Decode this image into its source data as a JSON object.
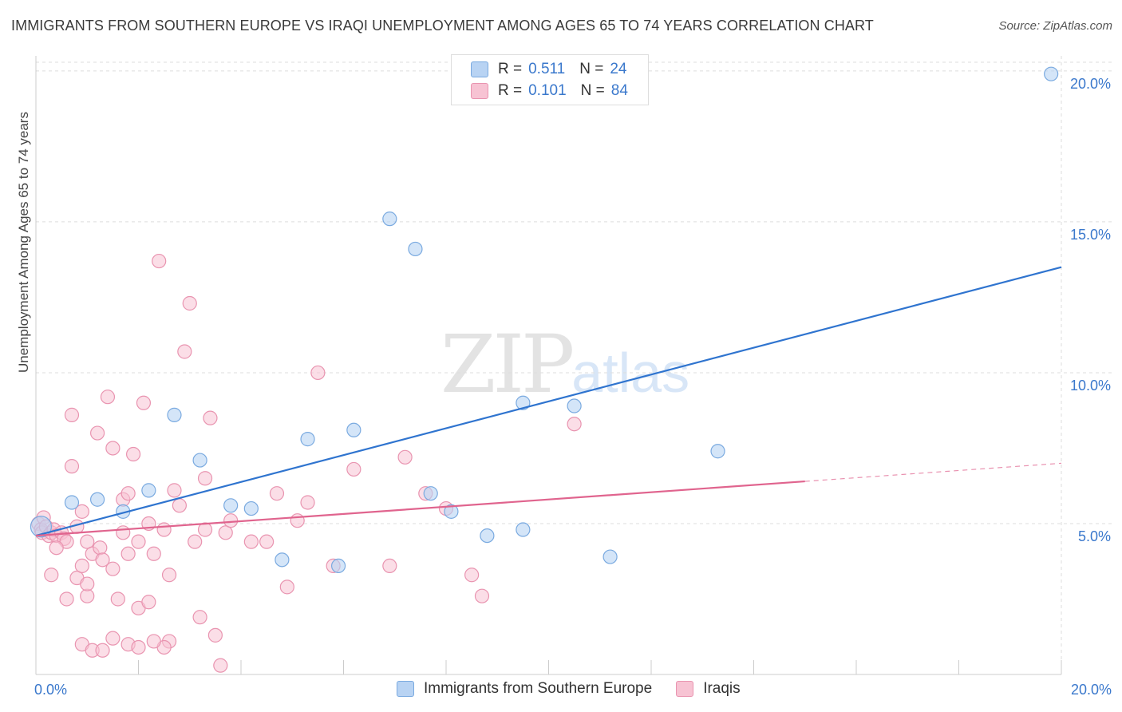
{
  "title": "IMMIGRANTS FROM SOUTHERN EUROPE VS IRAQI UNEMPLOYMENT AMONG AGES 65 TO 74 YEARS CORRELATION CHART",
  "source": "Source: ZipAtlas.com",
  "watermark": {
    "zip": "ZIP",
    "atlas": "atlas"
  },
  "legend": {
    "rows": [
      {
        "r_label": "R =",
        "r_value": "0.511",
        "n_label": "N =",
        "n_value": "24"
      },
      {
        "r_label": "R =",
        "r_value": "0.101",
        "n_label": "N =",
        "n_value": "84"
      }
    ]
  },
  "colors": {
    "blue_fill": "#b8d3f3",
    "blue_stroke": "#7aaae0",
    "blue_line": "#2f74cf",
    "pink_fill": "#f7c3d3",
    "pink_stroke": "#e994b0",
    "pink_line": "#e0648e",
    "tick_label": "#3a78cc",
    "grid": "#dedede"
  },
  "chart_data": {
    "type": "scatter",
    "title": "IMMIGRANTS FROM SOUTHERN EUROPE VS IRAQI UNEMPLOYMENT AMONG AGES 65 TO 74 YEARS CORRELATION CHART",
    "xlabel": "",
    "ylabel": "Unemployment Among Ages 65 to 74 years",
    "xlim": [
      0,
      20
    ],
    "ylim": [
      0,
      20.5
    ],
    "x_tick_labels": [
      "0.0%",
      "20.0%"
    ],
    "y_ticks": [
      5,
      10,
      15,
      20
    ],
    "y_tick_labels": [
      "5.0%",
      "10.0%",
      "15.0%",
      "20.0%"
    ],
    "series": [
      {
        "name": "Immigrants from Southern Europe",
        "color": "blue",
        "points": [
          [
            0.1,
            4.9
          ],
          [
            0.7,
            5.7
          ],
          [
            1.2,
            5.8
          ],
          [
            1.7,
            5.4
          ],
          [
            2.2,
            6.1
          ],
          [
            2.7,
            8.6
          ],
          [
            3.2,
            7.1
          ],
          [
            3.8,
            5.6
          ],
          [
            4.2,
            5.5
          ],
          [
            4.8,
            3.8
          ],
          [
            5.3,
            7.8
          ],
          [
            5.9,
            3.6
          ],
          [
            6.2,
            8.1
          ],
          [
            6.9,
            15.1
          ],
          [
            7.4,
            14.1
          ],
          [
            7.7,
            6.0
          ],
          [
            8.1,
            5.4
          ],
          [
            8.8,
            4.6
          ],
          [
            9.5,
            9.0
          ],
          [
            9.5,
            4.8
          ],
          [
            10.5,
            8.9
          ],
          [
            11.2,
            3.9
          ],
          [
            13.3,
            7.4
          ],
          [
            19.8,
            19.9
          ]
        ],
        "trend": {
          "x0": 0,
          "y0": 4.6,
          "x1": 20,
          "y1": 13.5
        }
      },
      {
        "name": "Iraqis",
        "color": "pink",
        "points": [
          [
            0.05,
            5.0
          ],
          [
            0.1,
            4.8
          ],
          [
            0.12,
            4.7
          ],
          [
            0.15,
            5.2
          ],
          [
            0.2,
            4.9
          ],
          [
            0.25,
            4.6
          ],
          [
            0.3,
            4.7
          ],
          [
            0.35,
            4.8
          ],
          [
            0.4,
            4.6
          ],
          [
            0.5,
            4.7
          ],
          [
            0.55,
            4.5
          ],
          [
            0.6,
            4.4
          ],
          [
            0.7,
            8.6
          ],
          [
            0.7,
            6.9
          ],
          [
            0.8,
            3.2
          ],
          [
            0.9,
            3.6
          ],
          [
            0.9,
            5.4
          ],
          [
            1.0,
            4.4
          ],
          [
            1.0,
            2.6
          ],
          [
            1.1,
            4.0
          ],
          [
            1.2,
            8.0
          ],
          [
            1.25,
            4.2
          ],
          [
            1.3,
            3.8
          ],
          [
            1.4,
            9.2
          ],
          [
            1.5,
            7.5
          ],
          [
            1.5,
            3.5
          ],
          [
            1.6,
            2.5
          ],
          [
            1.7,
            5.8
          ],
          [
            1.8,
            6.0
          ],
          [
            1.8,
            4.0
          ],
          [
            1.9,
            7.3
          ],
          [
            2.0,
            4.4
          ],
          [
            2.0,
            2.2
          ],
          [
            2.1,
            9.0
          ],
          [
            2.2,
            5.0
          ],
          [
            2.3,
            4.0
          ],
          [
            2.4,
            13.7
          ],
          [
            2.5,
            4.8
          ],
          [
            2.6,
            3.3
          ],
          [
            2.6,
            1.1
          ],
          [
            2.7,
            6.1
          ],
          [
            2.8,
            5.6
          ],
          [
            2.9,
            10.7
          ],
          [
            3.0,
            12.3
          ],
          [
            3.1,
            4.4
          ],
          [
            3.2,
            1.9
          ],
          [
            3.3,
            6.5
          ],
          [
            3.3,
            4.8
          ],
          [
            3.4,
            8.5
          ],
          [
            3.5,
            1.3
          ],
          [
            3.6,
            0.3
          ],
          [
            3.7,
            4.7
          ],
          [
            3.8,
            5.1
          ],
          [
            4.2,
            4.4
          ],
          [
            4.5,
            4.4
          ],
          [
            4.7,
            6.0
          ],
          [
            4.9,
            2.9
          ],
          [
            5.1,
            5.1
          ],
          [
            5.3,
            5.7
          ],
          [
            5.5,
            10.0
          ],
          [
            5.8,
            3.6
          ],
          [
            6.2,
            6.8
          ],
          [
            6.9,
            3.6
          ],
          [
            7.2,
            7.2
          ],
          [
            7.6,
            6.0
          ],
          [
            8.0,
            5.5
          ],
          [
            8.5,
            3.3
          ],
          [
            8.7,
            2.6
          ],
          [
            10.5,
            8.3
          ],
          [
            0.3,
            3.3
          ],
          [
            0.6,
            2.5
          ],
          [
            0.9,
            1.0
          ],
          [
            1.1,
            0.8
          ],
          [
            1.3,
            0.8
          ],
          [
            1.5,
            1.2
          ],
          [
            1.8,
            1.0
          ],
          [
            2.2,
            2.4
          ],
          [
            2.5,
            0.9
          ],
          [
            1.0,
            3.0
          ],
          [
            0.4,
            4.2
          ],
          [
            0.8,
            4.9
          ],
          [
            1.7,
            4.7
          ],
          [
            2.3,
            1.1
          ],
          [
            2.0,
            0.9
          ]
        ],
        "trend": {
          "x0": 0,
          "y0": 4.6,
          "x1": 15,
          "y1": 6.4
        },
        "trend_dashed": {
          "x0": 15,
          "y0": 6.4,
          "x1": 20,
          "y1": 7.0
        }
      }
    ]
  }
}
